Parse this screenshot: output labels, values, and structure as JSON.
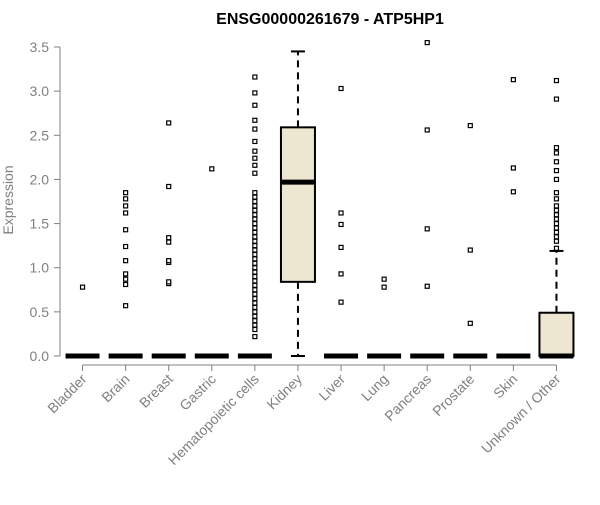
{
  "chart_data": {
    "type": "box",
    "title": "ENSG00000261679 - ATP5HP1",
    "xlabel": "",
    "ylabel": "Expression",
    "ylim": [
      0,
      3.5
    ],
    "yticks": [
      0.0,
      0.5,
      1.0,
      1.5,
      2.0,
      2.5,
      3.0,
      3.5
    ],
    "ytick_labels": [
      "0.0",
      "0.5",
      "1.0",
      "1.5",
      "2.0",
      "2.5",
      "3.0",
      "3.5"
    ],
    "grid": false,
    "legend": "none",
    "colors": {
      "box_fill": "#ede6d0",
      "box_stroke": "#000000",
      "axis_text": "#808080",
      "title": "#000000"
    },
    "categories": [
      "Bladder",
      "Brain",
      "Breast",
      "Gastric",
      "Hematopoietic cells",
      "Kidney",
      "Liver",
      "Lung",
      "Pancreas",
      "Prostate",
      "Skin",
      "Unknown / Other"
    ],
    "boxes": [
      {
        "q1": 0,
        "median": 0,
        "q3": 0,
        "whisker_low": 0,
        "whisker_high": 0
      },
      {
        "q1": 0,
        "median": 0,
        "q3": 0,
        "whisker_low": 0,
        "whisker_high": 0
      },
      {
        "q1": 0,
        "median": 0,
        "q3": 0,
        "whisker_low": 0,
        "whisker_high": 0
      },
      {
        "q1": 0,
        "median": 0,
        "q3": 0,
        "whisker_low": 0,
        "whisker_high": 0
      },
      {
        "q1": 0,
        "median": 0,
        "q3": 0,
        "whisker_low": 0,
        "whisker_high": 0
      },
      {
        "q1": 0.84,
        "median": 1.97,
        "q3": 2.59,
        "whisker_low": 0,
        "whisker_high": 3.45
      },
      {
        "q1": 0,
        "median": 0,
        "q3": 0,
        "whisker_low": 0,
        "whisker_high": 0
      },
      {
        "q1": 0,
        "median": 0,
        "q3": 0,
        "whisker_low": 0,
        "whisker_high": 0
      },
      {
        "q1": 0,
        "median": 0,
        "q3": 0,
        "whisker_low": 0,
        "whisker_high": 0
      },
      {
        "q1": 0,
        "median": 0,
        "q3": 0,
        "whisker_low": 0,
        "whisker_high": 0
      },
      {
        "q1": 0,
        "median": 0,
        "q3": 0,
        "whisker_low": 0,
        "whisker_high": 0
      },
      {
        "q1": 0,
        "median": 0,
        "q3": 0.49,
        "whisker_low": 0,
        "whisker_high": 1.19
      }
    ],
    "outliers": [
      [
        0.78
      ],
      [
        0.57,
        0.81,
        0.87,
        0.93,
        1.08,
        1.24,
        1.43,
        1.62,
        1.7,
        1.78,
        1.85
      ],
      [
        0.82,
        0.84,
        1.06,
        1.08,
        1.29,
        1.34,
        1.92,
        2.64
      ],
      [
        2.12
      ],
      [
        0.22,
        0.3,
        0.35,
        0.4,
        0.45,
        0.5,
        0.55,
        0.6,
        0.65,
        0.7,
        0.75,
        0.8,
        0.85,
        0.9,
        0.95,
        1.0,
        1.05,
        1.1,
        1.15,
        1.2,
        1.25,
        1.3,
        1.35,
        1.4,
        1.45,
        1.5,
        1.55,
        1.6,
        1.65,
        1.7,
        1.75,
        1.8,
        1.85,
        2.07,
        2.16,
        2.24,
        2.32,
        2.43,
        2.57,
        2.67,
        2.84,
        2.98,
        3.16
      ],
      [],
      [
        0.61,
        0.93,
        1.23,
        1.49,
        1.62,
        3.03
      ],
      [
        0.78,
        0.87
      ],
      [
        0.79,
        1.44,
        2.56,
        3.55
      ],
      [
        0.37,
        1.2,
        2.61
      ],
      [
        1.86,
        2.13,
        3.13
      ],
      [
        1.22,
        1.3,
        1.35,
        1.4,
        1.45,
        1.5,
        1.55,
        1.6,
        1.65,
        1.7,
        1.78,
        1.85,
        2.0,
        2.1,
        2.2,
        2.3,
        2.36,
        2.91,
        3.12
      ]
    ]
  }
}
